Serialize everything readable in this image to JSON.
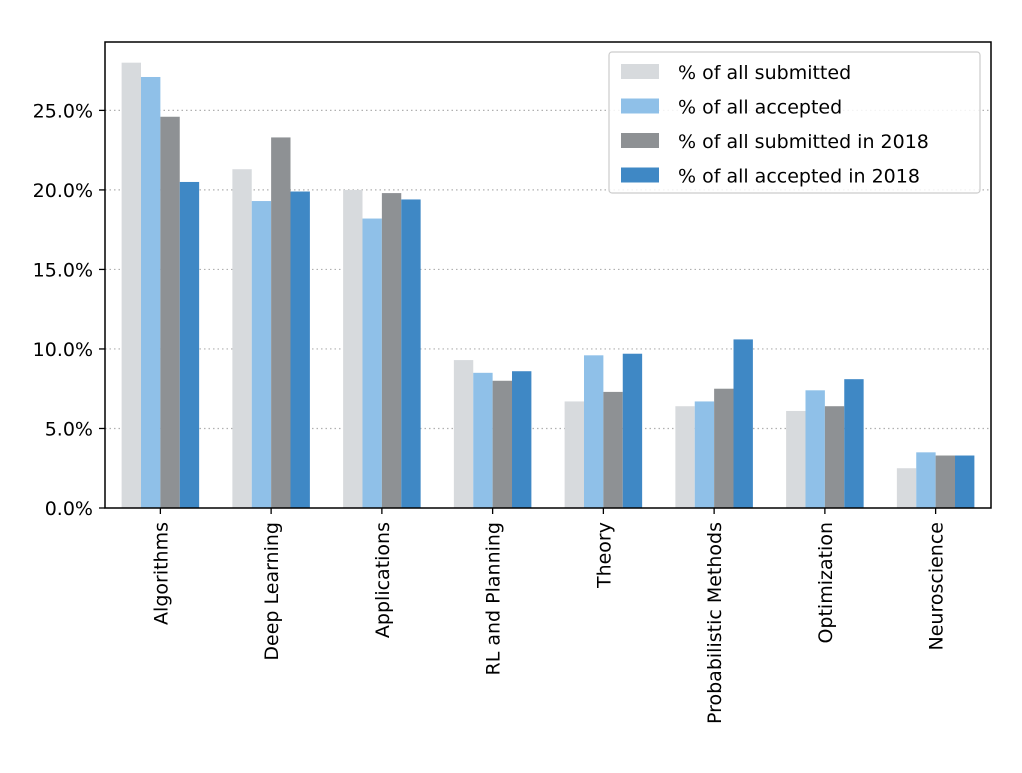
{
  "chart_data": {
    "type": "bar",
    "title": "",
    "xlabel": "",
    "ylabel": "",
    "categories": [
      "Algorithms",
      "Deep Learning",
      "Applications",
      "RL and Planning",
      "Theory",
      "Probabilistic Methods",
      "Optimization",
      "Neuroscience"
    ],
    "series": [
      {
        "name": "% of all submitted",
        "color": "#d7dadd",
        "values": [
          28.0,
          21.3,
          20.0,
          9.3,
          6.7,
          6.4,
          6.1,
          2.5
        ]
      },
      {
        "name": "% of all accepted",
        "color": "#8fc0e8",
        "values": [
          27.1,
          19.3,
          18.2,
          8.5,
          9.6,
          6.7,
          7.4,
          3.5
        ]
      },
      {
        "name": "% of all submitted in 2018",
        "color": "#8e9194",
        "values": [
          24.6,
          23.3,
          19.8,
          8.0,
          7.3,
          7.5,
          6.4,
          3.3
        ]
      },
      {
        "name": "% of all accepted in 2018",
        "color": "#3f88c5",
        "values": [
          20.5,
          19.9,
          19.4,
          8.6,
          9.7,
          10.6,
          8.1,
          3.3
        ]
      }
    ],
    "y_ticks": [
      0,
      5,
      10,
      15,
      20,
      25
    ],
    "y_tick_labels": [
      "0.0%",
      "5.0%",
      "10.0%",
      "15.0%",
      "20.0%",
      "25.0%"
    ],
    "ylim": [
      0,
      29.3
    ],
    "grid": "horizontal dotted",
    "legend_position": "top-right"
  }
}
